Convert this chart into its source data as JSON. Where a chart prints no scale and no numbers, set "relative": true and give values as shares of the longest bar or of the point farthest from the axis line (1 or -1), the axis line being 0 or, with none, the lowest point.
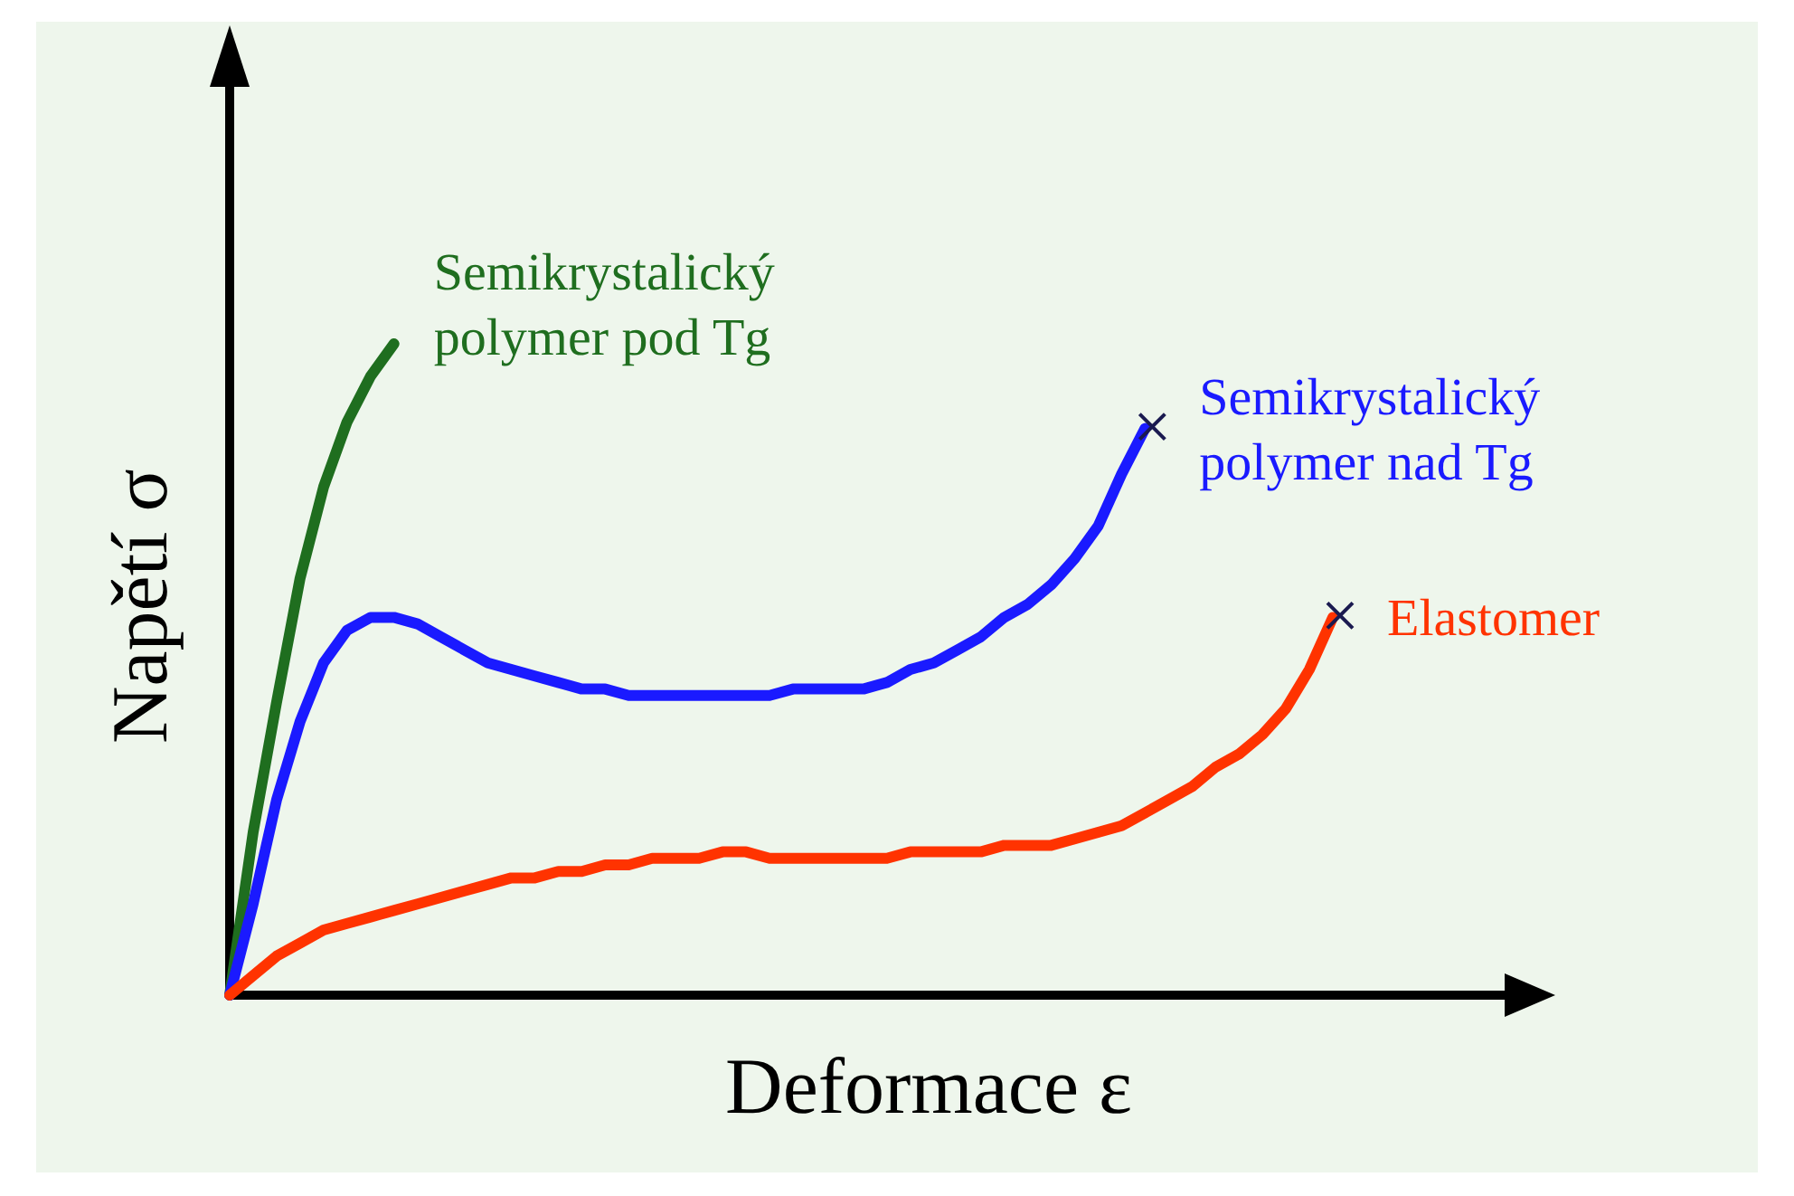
{
  "chart_data": {
    "type": "line",
    "relative": true,
    "xlabel": "Deformace ε",
    "ylabel": "Napětí σ",
    "tick_labels": false,
    "line_style": "solid",
    "categories": [
      null,
      null,
      null,
      null,
      null,
      null,
      null,
      null,
      null,
      null,
      null,
      null,
      null,
      null,
      null,
      null,
      null,
      null,
      null,
      null,
      null,
      null,
      null,
      null,
      null,
      null,
      null,
      null,
      null,
      null,
      null,
      null,
      null,
      null,
      null,
      null,
      null,
      null,
      null,
      null,
      null,
      null,
      null,
      null,
      null,
      null,
      null,
      null
    ],
    "series": [
      {
        "name": "Semikrystalický polymer pod Tg",
        "color": "#1f6e1f",
        "values": [
          0,
          0.25,
          0.45,
          0.64,
          0.78,
          0.88,
          0.95,
          1,
          null,
          null,
          null,
          null,
          null,
          null,
          null,
          null,
          null,
          null,
          null,
          null,
          null,
          null,
          null,
          null,
          null,
          null,
          null,
          null,
          null,
          null,
          null,
          null,
          null,
          null,
          null,
          null,
          null,
          null,
          null,
          null,
          null,
          null,
          null,
          null,
          null,
          null,
          null,
          null
        ]
      },
      {
        "name": "Semikrystalický polymer nad Tg",
        "color": "#1a1aff",
        "values": [
          0,
          0.14,
          0.3,
          0.42,
          0.51,
          0.56,
          0.58,
          0.58,
          0.57,
          0.55,
          0.53,
          0.51,
          0.5,
          0.49,
          0.48,
          0.47,
          0.47,
          0.46,
          0.46,
          0.46,
          0.46,
          0.46,
          0.46,
          0.46,
          0.47,
          0.47,
          0.47,
          0.47,
          0.48,
          0.5,
          0.51,
          0.53,
          0.55,
          0.58,
          0.6,
          0.63,
          0.67,
          0.72,
          0.8,
          0.87,
          null,
          null,
          null,
          null,
          null,
          null,
          null,
          null
        ]
      },
      {
        "name": "Elastomer",
        "color": "#ff3300",
        "values": [
          0,
          0.03,
          0.06,
          0.08,
          0.1,
          0.11,
          0.12,
          0.13,
          0.14,
          0.15,
          0.16,
          0.17,
          0.18,
          0.18,
          0.19,
          0.19,
          0.2,
          0.2,
          0.21,
          0.21,
          0.21,
          0.22,
          0.22,
          0.21,
          0.21,
          0.21,
          0.21,
          0.21,
          0.21,
          0.22,
          0.22,
          0.22,
          0.22,
          0.23,
          0.23,
          0.23,
          0.24,
          0.25,
          0.26,
          0.28,
          0.3,
          0.32,
          0.35,
          0.37,
          0.4,
          0.44,
          0.5,
          0.58
        ]
      }
    ]
  }
}
